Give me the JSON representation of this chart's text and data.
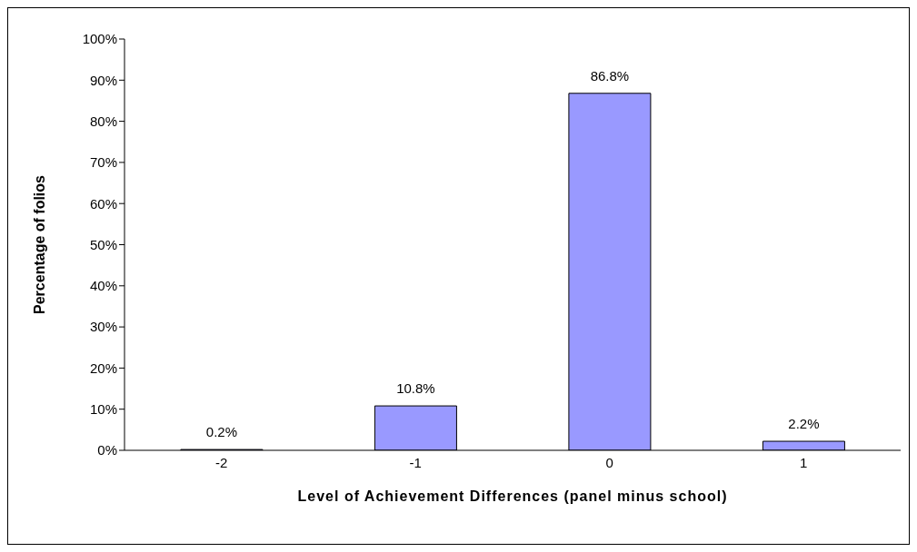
{
  "chart_data": {
    "type": "bar",
    "xlabel": "Level of Achievement Differences (panel minus school)",
    "ylabel": "Percentage of folios",
    "categories": [
      "-2",
      "-1",
      "0",
      "1"
    ],
    "values": [
      0.2,
      10.8,
      86.8,
      2.2
    ],
    "value_labels": [
      "0.2%",
      "10.8%",
      "86.8%",
      "2.2%"
    ],
    "color": "#9999ff",
    "ylim": [
      0,
      100
    ],
    "yticks": [
      {
        "value": 0,
        "label": "0%"
      },
      {
        "value": 10,
        "label": "10%"
      },
      {
        "value": 20,
        "label": "20%"
      },
      {
        "value": 30,
        "label": "30%"
      },
      {
        "value": 40,
        "label": "40%"
      },
      {
        "value": 50,
        "label": "50%"
      },
      {
        "value": 60,
        "label": "60%"
      },
      {
        "value": 70,
        "label": "70%"
      },
      {
        "value": 80,
        "label": "80%"
      },
      {
        "value": 90,
        "label": "90%"
      },
      {
        "value": 100,
        "label": "100%"
      }
    ]
  }
}
